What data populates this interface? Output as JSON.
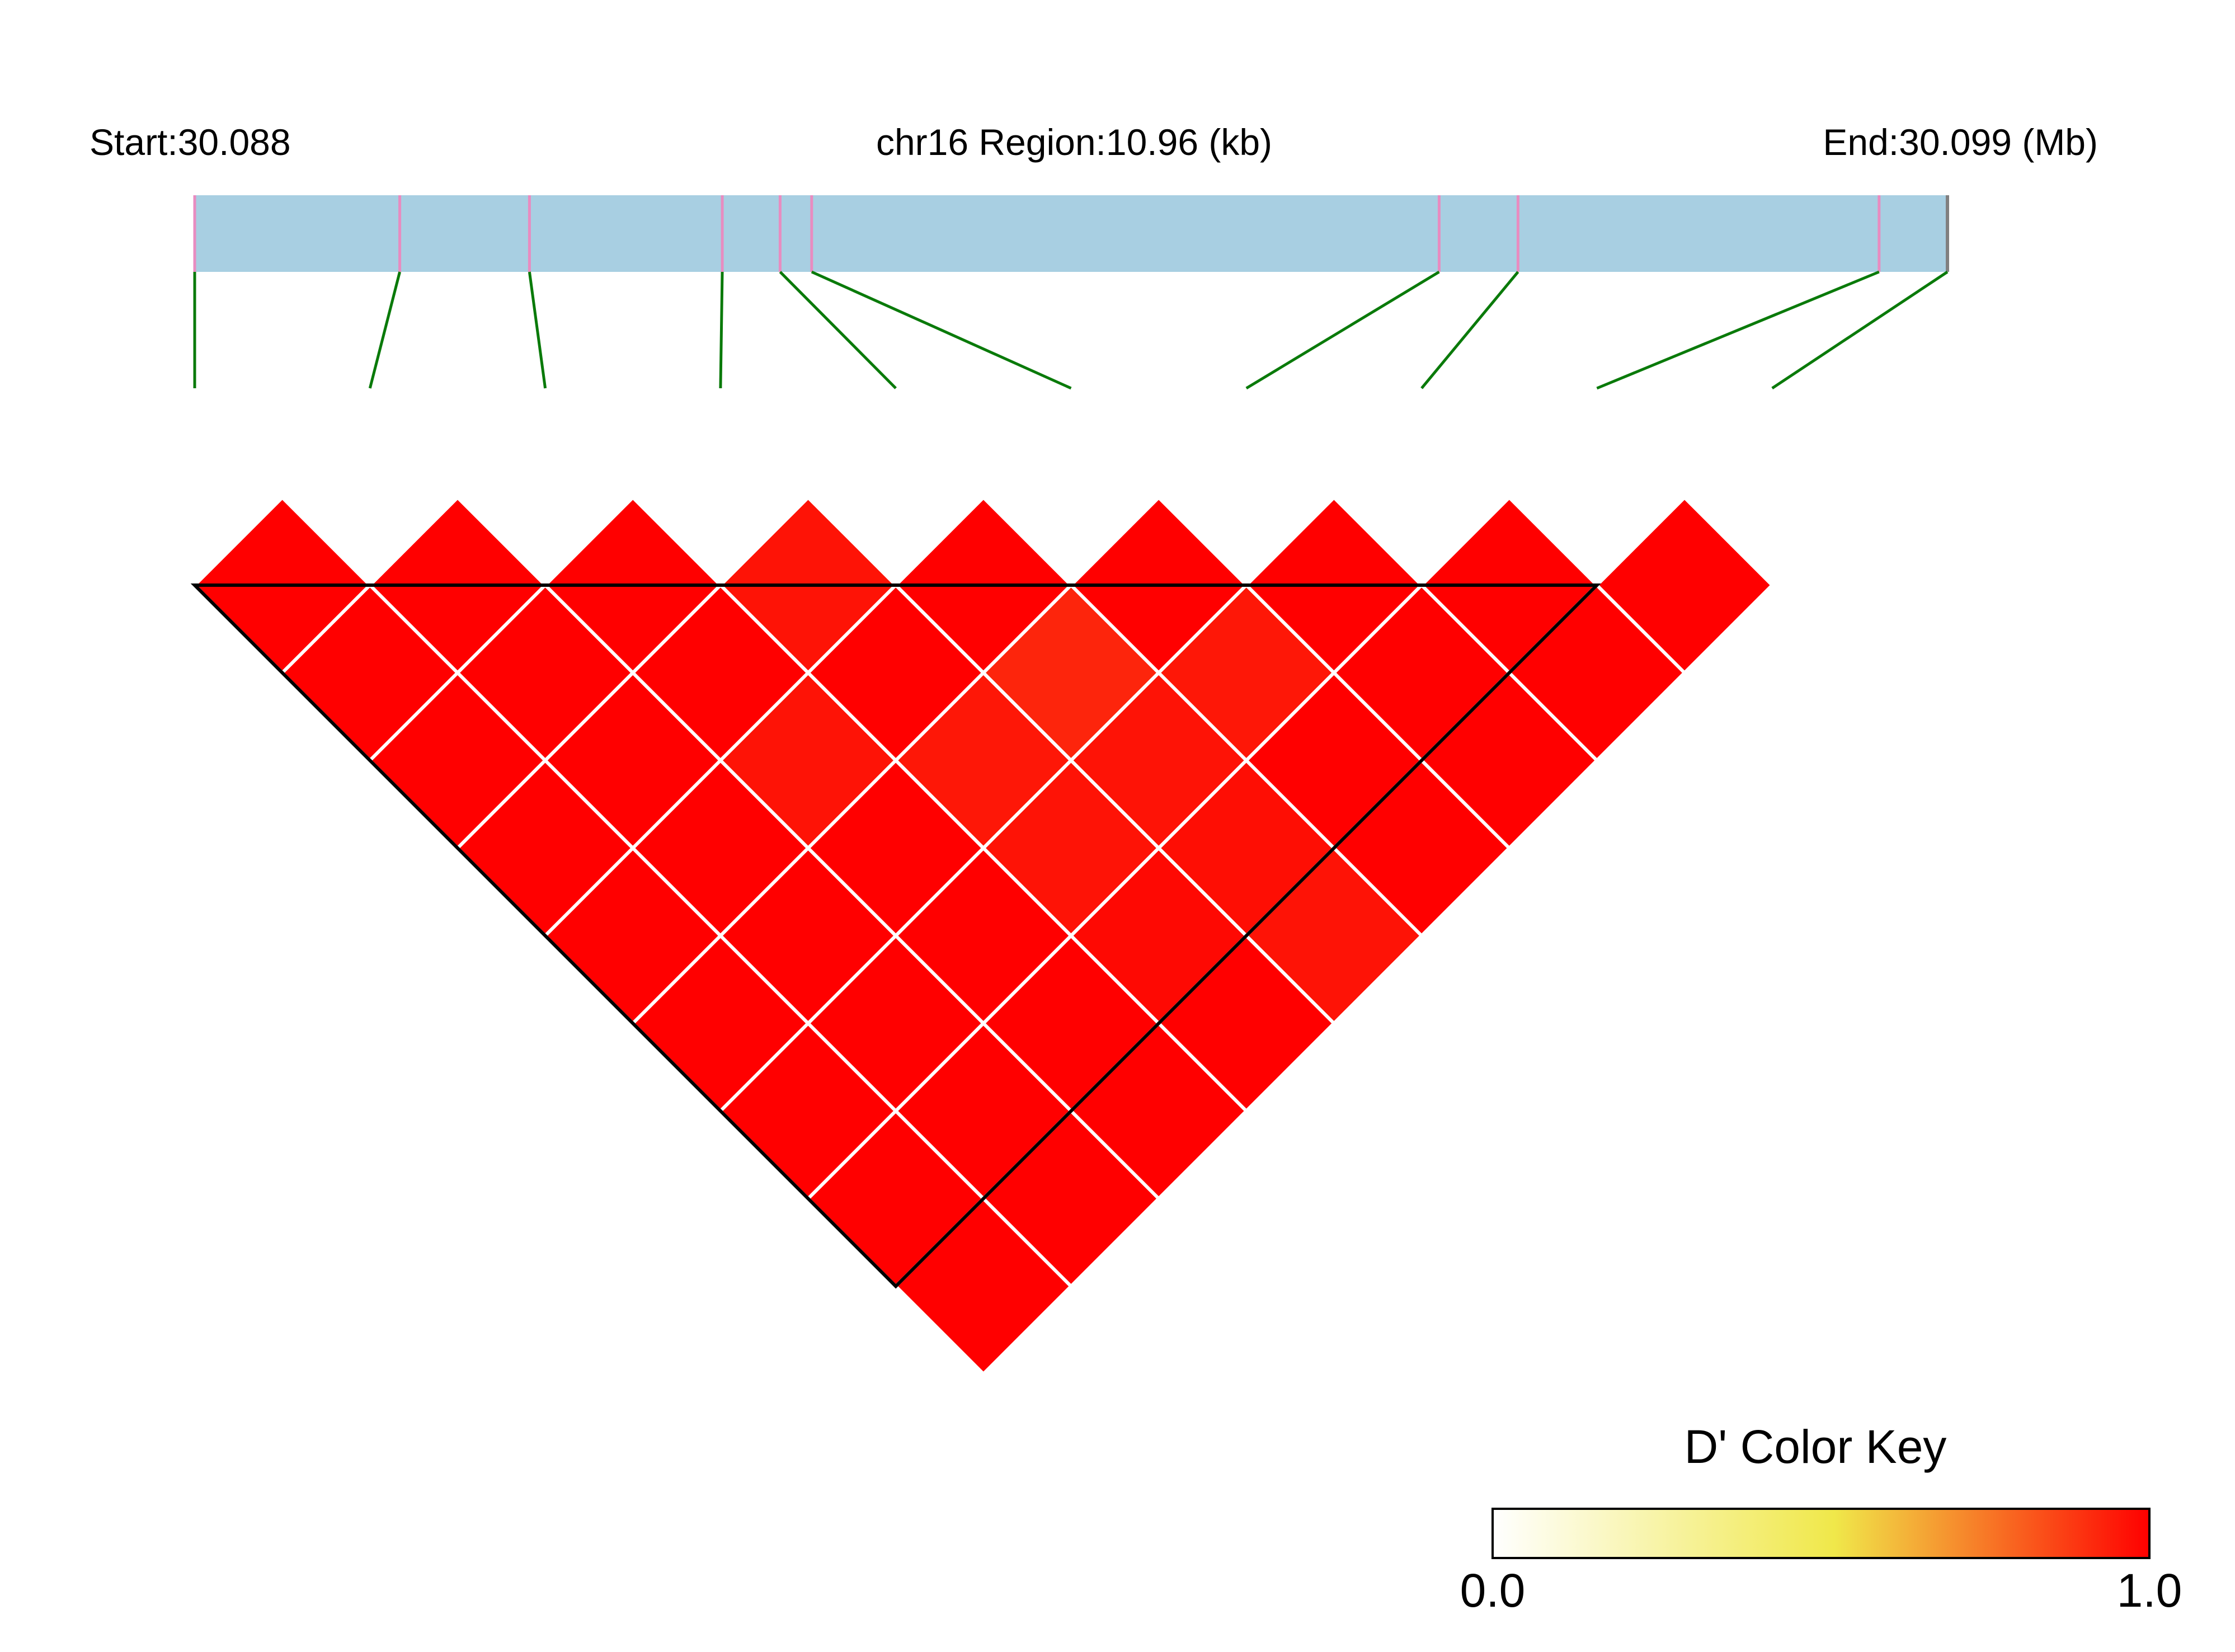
{
  "header": {
    "start_label": "Start:30.088",
    "region_label": "chr16 Region:10.96 (kb)",
    "end_label": "End:30.099 (Mb)"
  },
  "chart_data": {
    "type": "heatmap",
    "title": "",
    "chromosome": "chr16",
    "region_start_mb": 30.088,
    "region_end_mb": 30.099,
    "region_length_kb": 10.96,
    "n_snps": 10,
    "snp_relative_positions": [
      0.0,
      0.117,
      0.191,
      0.301,
      0.334,
      0.352,
      0.71,
      0.755,
      0.961,
      1.0
    ],
    "dprime_matrix": [
      [
        null,
        1.0,
        1.0,
        1.0,
        1.0,
        1.0,
        1.0,
        1.0,
        1.0,
        1.0
      ],
      [
        null,
        null,
        1.0,
        1.0,
        1.0,
        1.0,
        1.0,
        1.0,
        1.0,
        1.0
      ],
      [
        null,
        null,
        null,
        1.0,
        1.0,
        0.96,
        1.0,
        1.0,
        1.0,
        1.0
      ],
      [
        null,
        null,
        null,
        null,
        0.96,
        1.0,
        0.95,
        0.96,
        0.98,
        1.0
      ],
      [
        null,
        null,
        null,
        null,
        null,
        1.0,
        0.92,
        0.96,
        0.97,
        0.96
      ],
      [
        null,
        null,
        null,
        null,
        null,
        null,
        1.0,
        0.95,
        1.0,
        1.0
      ],
      [
        null,
        null,
        null,
        null,
        null,
        null,
        null,
        1.0,
        1.0,
        1.0
      ],
      [
        null,
        null,
        null,
        null,
        null,
        null,
        null,
        null,
        1.0,
        1.0
      ],
      [
        null,
        null,
        null,
        null,
        null,
        null,
        null,
        null,
        null,
        1.0
      ]
    ],
    "ld_blocks": [
      [
        0,
        8
      ]
    ],
    "color_key": {
      "title": "D' Color Key",
      "min_label": "0.0",
      "max_label": "1.0",
      "min": 0.0,
      "max": 1.0,
      "colors": [
        "#ffffff",
        "#f0e84a",
        "#ff0000"
      ]
    },
    "colors": {
      "region_bar": "#a8cfe2",
      "snp_tick": "#e88cc0",
      "connector": "#0a7a0a",
      "cell_border": "#ffffff",
      "block_outline": "#000000"
    }
  }
}
